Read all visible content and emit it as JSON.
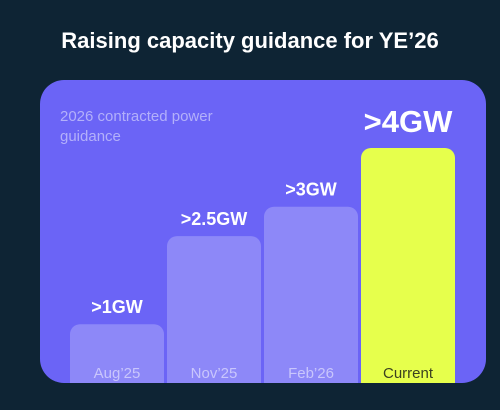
{
  "chart_data": {
    "type": "bar",
    "title": "Raising capacity guidance for YE’26",
    "subtitle": [
      "2026 contracted power",
      "guidance"
    ],
    "categories": [
      "Aug’25",
      "Nov’25",
      "Feb’26",
      "Current"
    ],
    "values": [
      1,
      2.5,
      3,
      4
    ],
    "value_labels": [
      ">1GW",
      ">2.5GW",
      ">3GW",
      ">4GW"
    ],
    "colors": [
      "#8d88f8",
      "#8d88f8",
      "#8d88f8",
      "#e6ff4c"
    ]
  }
}
